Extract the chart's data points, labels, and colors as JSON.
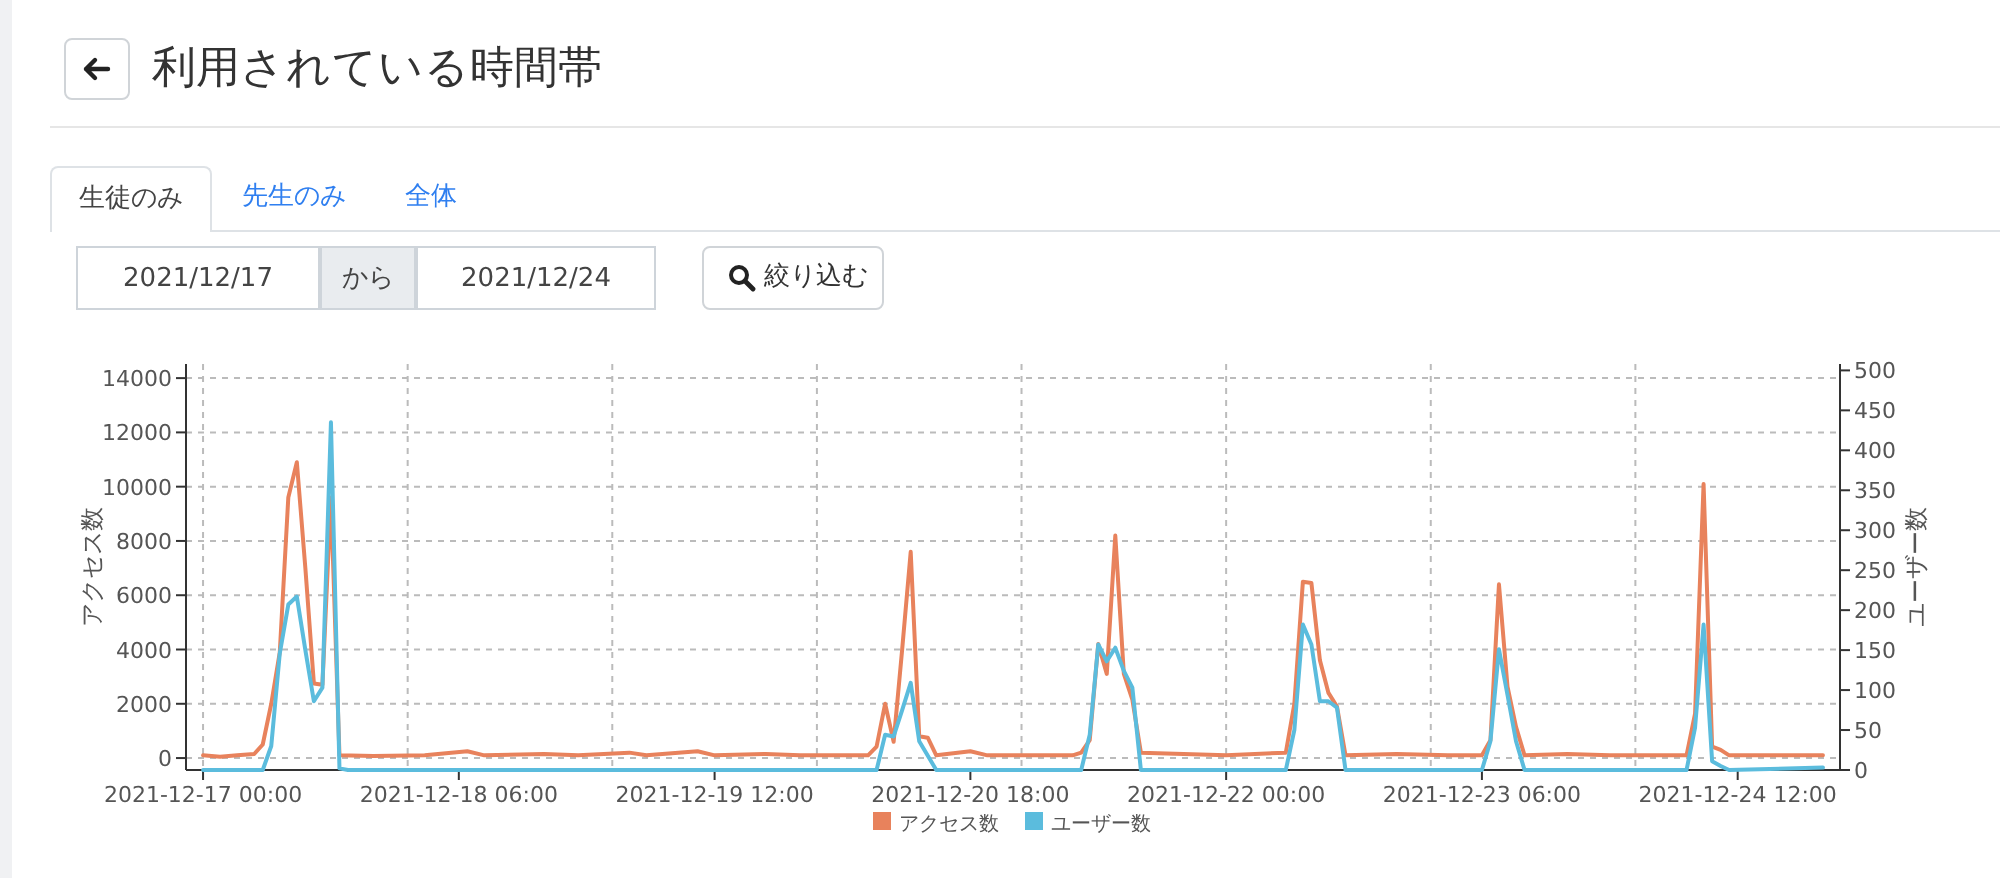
{
  "chart_data": {
    "type": "line",
    "title": "利用されている時間帯",
    "annotations": [
      "生徒のみ",
      "先生のみ",
      "全体",
      "2021/12/17",
      "から",
      "2021/12/24",
      "絞り込む"
    ],
    "ylabel": "アクセス数",
    "y2label": "ユーザー数",
    "xlim": [
      "2021-12-16T22:00",
      "2021-12-25T00:00"
    ],
    "xticks": [
      {
        "value": "2021-12-17T00:00",
        "label": "2021-12-17 00:00"
      },
      {
        "value": "2021-12-18T00:00",
        "label": null
      },
      {
        "value": "2021-12-18T06:00",
        "label": "2021-12-18 06:00"
      },
      {
        "value": "2021-12-19T00:00",
        "label": null
      },
      {
        "value": "2021-12-19T12:00",
        "label": "2021-12-19 12:00"
      },
      {
        "value": "2021-12-20T00:00",
        "label": null
      },
      {
        "value": "2021-12-20T18:00",
        "label": "2021-12-20 18:00"
      },
      {
        "value": "2021-12-21T00:00",
        "label": null
      },
      {
        "value": "2021-12-22T00:00",
        "label": "2021-12-22 00:00"
      },
      {
        "value": "2021-12-23T00:00",
        "label": null
      },
      {
        "value": "2021-12-23T06:00",
        "label": "2021-12-23 06:00"
      },
      {
        "value": "2021-12-24T00:00",
        "label": null
      },
      {
        "value": "2021-12-24T12:00",
        "label": "2021-12-24 12:00"
      }
    ],
    "ylim": [
      -440,
      14520
    ],
    "yticks": [
      0,
      2000,
      4000,
      6000,
      8000,
      10000,
      12000,
      14000
    ],
    "y2lim": [
      0,
      508
    ],
    "y2ticks": [
      0,
      50,
      100,
      150,
      200,
      250,
      300,
      350,
      400,
      450,
      500
    ],
    "grid": true,
    "legend": "bottom",
    "marker": "none",
    "series": [
      {
        "name": "アクセス数",
        "color": "#e8825c",
        "x": [
          "2021-12-17T00:00",
          "2021-12-17T02:00",
          "2021-12-17T04:00",
          "2021-12-17T06:00",
          "2021-12-17T07:00",
          "2021-12-17T08:00",
          "2021-12-17T09:00",
          "2021-12-17T10:00",
          "2021-12-17T11:00",
          "2021-12-17T12:00",
          "2021-12-17T13:00",
          "2021-12-17T14:00",
          "2021-12-17T15:00",
          "2021-12-17T16:00",
          "2021-12-17T20:00",
          "2021-12-18T02:00",
          "2021-12-18T07:00",
          "2021-12-18T09:00",
          "2021-12-18T16:00",
          "2021-12-18T20:00",
          "2021-12-19T02:00",
          "2021-12-19T04:00",
          "2021-12-19T10:00",
          "2021-12-19T12:00",
          "2021-12-19T18:00",
          "2021-12-19T22:00",
          "2021-12-20T06:00",
          "2021-12-20T07:00",
          "2021-12-20T08:00",
          "2021-12-20T09:00",
          "2021-12-20T10:00",
          "2021-12-20T11:00",
          "2021-12-20T12:00",
          "2021-12-20T13:00",
          "2021-12-20T14:00",
          "2021-12-20T18:00",
          "2021-12-20T20:00",
          "2021-12-21T06:00",
          "2021-12-21T07:00",
          "2021-12-21T08:00",
          "2021-12-21T09:00",
          "2021-12-21T10:00",
          "2021-12-21T11:00",
          "2021-12-21T12:00",
          "2021-12-21T13:00",
          "2021-12-21T14:00",
          "2021-12-21T19:00",
          "2021-12-22T00:00",
          "2021-12-22T07:00",
          "2021-12-22T08:00",
          "2021-12-22T09:00",
          "2021-12-22T10:00",
          "2021-12-22T11:00",
          "2021-12-22T12:00",
          "2021-12-22T13:00",
          "2021-12-22T14:00",
          "2021-12-22T20:00",
          "2021-12-23T02:00",
          "2021-12-23T06:00",
          "2021-12-23T07:00",
          "2021-12-23T08:00",
          "2021-12-23T09:00",
          "2021-12-23T10:00",
          "2021-12-23T11:00",
          "2021-12-23T16:00",
          "2021-12-23T21:00",
          "2021-12-24T06:00",
          "2021-12-24T07:00",
          "2021-12-24T08:00",
          "2021-12-24T09:00",
          "2021-12-24T10:00",
          "2021-12-24T11:00",
          "2021-12-24T17:00",
          "2021-12-24T22:00"
        ],
        "values": [
          100,
          50,
          100,
          150,
          500,
          2000,
          3900,
          9600,
          10900,
          7000,
          2750,
          2700,
          9600,
          100,
          80,
          100,
          250,
          100,
          150,
          100,
          200,
          100,
          250,
          100,
          150,
          100,
          100,
          420,
          2000,
          600,
          4000,
          7600,
          800,
          750,
          100,
          250,
          100,
          100,
          200,
          660,
          4200,
          3100,
          8200,
          3100,
          2150,
          200,
          150,
          100,
          200,
          2000,
          6500,
          6450,
          3600,
          2400,
          1900,
          100,
          150,
          100,
          100,
          660,
          6400,
          2630,
          1150,
          100,
          150,
          100,
          100,
          1640,
          10100,
          420,
          300,
          100,
          100,
          100
        ]
      },
      {
        "name": "ユーザー数",
        "color": "#5bbcdd",
        "axis": "y2",
        "x": [
          "2021-12-17T00:00",
          "2021-12-17T07:00",
          "2021-12-17T08:00",
          "2021-12-17T09:00",
          "2021-12-17T10:00",
          "2021-12-17T11:00",
          "2021-12-17T12:00",
          "2021-12-17T13:00",
          "2021-12-17T14:00",
          "2021-12-17T15:00",
          "2021-12-17T16:00",
          "2021-12-17T17:00",
          "2021-12-20T07:00",
          "2021-12-20T08:00",
          "2021-12-20T09:00",
          "2021-12-20T10:00",
          "2021-12-20T11:00",
          "2021-12-20T12:00",
          "2021-12-20T14:00",
          "2021-12-21T07:00",
          "2021-12-21T08:00",
          "2021-12-21T09:00",
          "2021-12-21T10:00",
          "2021-12-21T11:00",
          "2021-12-21T12:00",
          "2021-12-21T13:00",
          "2021-12-21T14:00",
          "2021-12-22T07:00",
          "2021-12-22T08:00",
          "2021-12-22T09:00",
          "2021-12-22T10:00",
          "2021-12-22T11:00",
          "2021-12-22T12:00",
          "2021-12-22T13:00",
          "2021-12-22T14:00",
          "2021-12-23T06:00",
          "2021-12-23T07:00",
          "2021-12-23T08:00",
          "2021-12-23T09:00",
          "2021-12-23T10:00",
          "2021-12-23T11:00",
          "2021-12-24T06:00",
          "2021-12-24T07:00",
          "2021-12-24T08:00",
          "2021-12-24T09:00",
          "2021-12-24T10:00",
          "2021-12-24T11:00",
          "2021-12-24T22:00"
        ],
        "values": [
          0,
          0,
          30,
          146,
          207,
          217,
          150,
          86,
          103,
          435,
          2,
          0,
          0,
          44,
          42,
          75,
          109,
          36,
          0,
          0,
          44,
          157,
          136,
          153,
          124,
          103,
          0,
          0,
          50,
          182,
          157,
          86,
          86,
          78,
          0,
          0,
          36,
          151,
          94,
          36,
          0,
          0,
          53,
          182,
          11,
          5,
          0,
          3
        ]
      }
    ]
  }
}
